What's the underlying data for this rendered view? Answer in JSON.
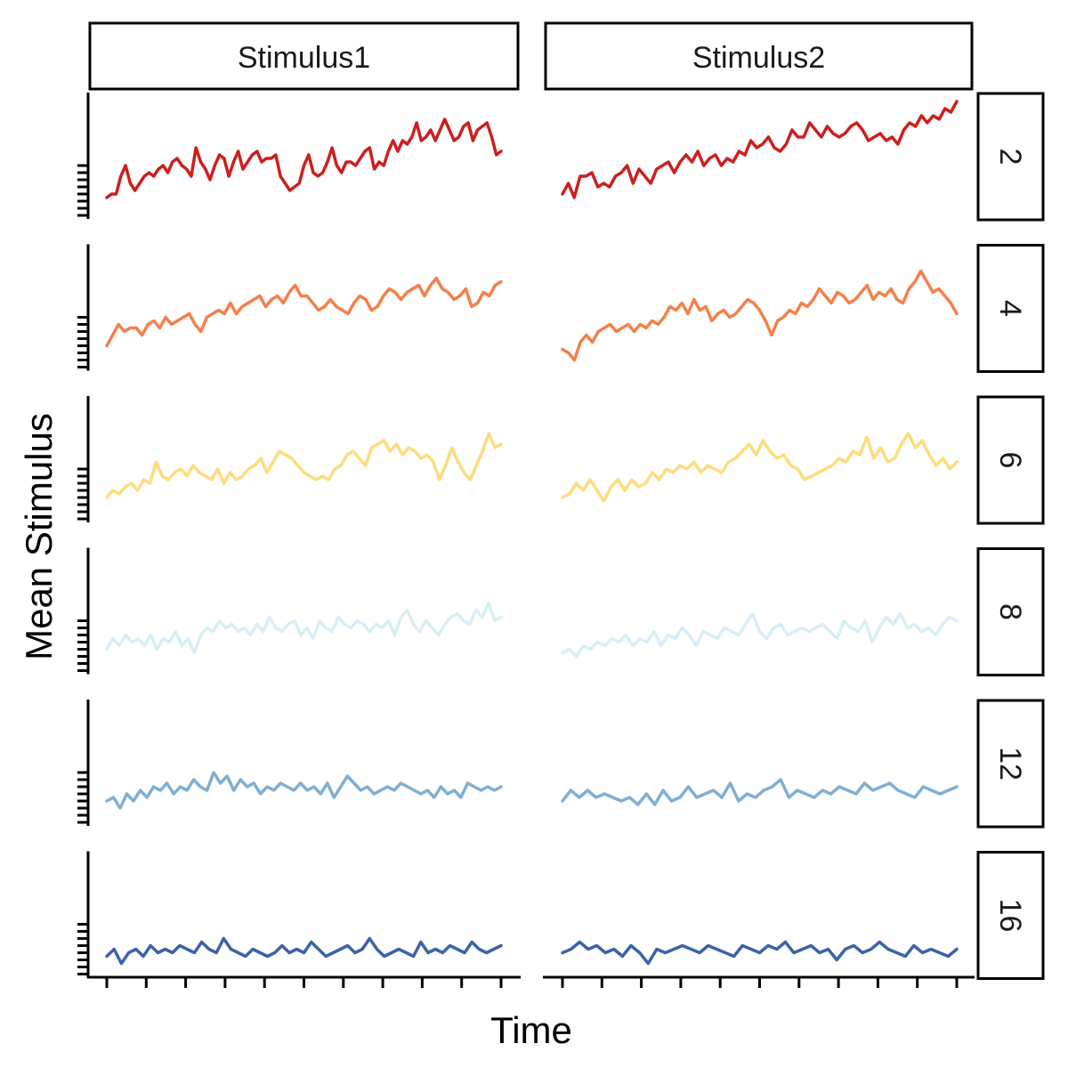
{
  "chart_data": {
    "type": "line",
    "title": "",
    "xlabel": "Time",
    "ylabel": "Mean Stimulus",
    "facet_columns": [
      "Stimulus1",
      "Stimulus2"
    ],
    "facet_rows": [
      "2",
      "4",
      "6",
      "8",
      "12",
      "16"
    ],
    "x_tick_count": 11,
    "grid": false,
    "series": [
      {
        "row": "2",
        "color": "#cc1f1f",
        "Stimulus1": [
          0.25,
          0.3,
          0.3,
          0.55,
          0.7,
          0.45,
          0.35,
          0.45,
          0.55,
          0.6,
          0.55,
          0.65,
          0.7,
          0.6,
          0.75,
          0.8,
          0.7,
          0.65,
          0.55,
          0.95,
          0.75,
          0.65,
          0.5,
          0.7,
          0.85,
          0.8,
          0.55,
          0.75,
          0.9,
          0.65,
          0.75,
          0.85,
          0.9,
          0.75,
          0.8,
          0.8,
          0.85,
          0.55,
          0.45,
          0.35,
          0.4,
          0.45,
          0.7,
          0.85,
          0.6,
          0.55,
          0.6,
          0.75,
          0.95,
          0.7,
          0.6,
          0.75,
          0.75,
          0.7,
          0.8,
          0.9,
          0.95,
          0.65,
          0.75,
          0.7,
          0.9,
          1.05,
          0.9,
          1.05,
          1.0,
          1.1,
          1.3,
          1.05,
          1.1,
          1.2,
          1.05,
          1.2,
          1.35,
          1.2,
          1.05,
          1.1,
          1.25,
          1.3,
          1.05,
          1.2,
          1.25,
          1.3,
          1.1,
          0.85,
          0.9
        ],
        "Stimulus2": [
          0.3,
          0.45,
          0.25,
          0.55,
          0.55,
          0.6,
          0.4,
          0.45,
          0.4,
          0.55,
          0.6,
          0.7,
          0.45,
          0.65,
          0.55,
          0.45,
          0.65,
          0.7,
          0.75,
          0.6,
          0.75,
          0.85,
          0.75,
          0.9,
          0.7,
          0.8,
          0.85,
          0.7,
          0.8,
          0.75,
          0.9,
          0.85,
          1.05,
          0.95,
          1.0,
          1.1,
          0.95,
          0.9,
          1.0,
          1.2,
          1.1,
          1.1,
          1.3,
          1.2,
          1.1,
          1.25,
          1.15,
          1.1,
          1.15,
          1.25,
          1.3,
          1.2,
          1.05,
          1.1,
          1.15,
          1.05,
          1.1,
          1.0,
          1.2,
          1.3,
          1.25,
          1.4,
          1.3,
          1.4,
          1.35,
          1.5,
          1.45,
          1.6
        ]
      },
      {
        "row": "4",
        "color": "#f4804a",
        "Stimulus1": [
          0.3,
          0.45,
          0.6,
          0.5,
          0.55,
          0.55,
          0.45,
          0.6,
          0.65,
          0.55,
          0.7,
          0.6,
          0.65,
          0.7,
          0.75,
          0.6,
          0.5,
          0.7,
          0.75,
          0.8,
          0.75,
          0.9,
          0.75,
          0.85,
          0.9,
          0.95,
          1.0,
          0.85,
          0.95,
          1.0,
          0.9,
          1.05,
          1.15,
          1.0,
          1.0,
          0.9,
          0.8,
          0.85,
          0.95,
          0.85,
          0.8,
          0.75,
          0.9,
          1.0,
          0.95,
          0.8,
          0.85,
          1.0,
          1.1,
          1.05,
          0.95,
          1.05,
          1.1,
          1.15,
          1.0,
          1.15,
          1.25,
          1.1,
          1.05,
          0.95,
          1.0,
          1.1,
          0.85,
          0.9,
          1.05,
          1.0,
          1.15,
          1.2
        ],
        "Stimulus2": [
          0.25,
          0.2,
          0.1,
          0.35,
          0.45,
          0.35,
          0.5,
          0.55,
          0.6,
          0.5,
          0.55,
          0.6,
          0.5,
          0.6,
          0.55,
          0.65,
          0.6,
          0.7,
          0.85,
          0.8,
          0.9,
          0.75,
          0.95,
          0.8,
          0.85,
          0.65,
          0.75,
          0.8,
          0.7,
          0.75,
          0.85,
          0.95,
          0.9,
          0.8,
          0.65,
          0.45,
          0.65,
          0.7,
          0.8,
          0.75,
          0.9,
          0.85,
          0.95,
          1.1,
          1.0,
          0.9,
          1.05,
          1.0,
          0.9,
          0.95,
          1.05,
          1.15,
          0.95,
          1.05,
          1.0,
          1.1,
          0.95,
          0.9,
          1.1,
          1.2,
          1.35,
          1.2,
          1.05,
          1.1,
          1.0,
          0.9,
          0.75
        ]
      },
      {
        "row": "6",
        "color": "#fddc7e",
        "Stimulus1": [
          0.3,
          0.4,
          0.35,
          0.45,
          0.5,
          0.4,
          0.55,
          0.5,
          0.8,
          0.6,
          0.55,
          0.65,
          0.7,
          0.6,
          0.75,
          0.65,
          0.6,
          0.55,
          0.7,
          0.5,
          0.65,
          0.55,
          0.6,
          0.7,
          0.75,
          0.85,
          0.65,
          0.8,
          0.95,
          0.9,
          0.85,
          0.75,
          0.65,
          0.6,
          0.55,
          0.6,
          0.55,
          0.7,
          0.75,
          0.9,
          0.95,
          0.85,
          0.75,
          1.0,
          1.05,
          1.1,
          0.95,
          1.05,
          0.9,
          1.0,
          0.95,
          0.85,
          0.9,
          0.8,
          0.55,
          0.75,
          1.0,
          0.8,
          0.65,
          0.55,
          0.75,
          0.95,
          1.2,
          1.0,
          1.05
        ],
        "Stimulus2": [
          0.3,
          0.35,
          0.5,
          0.4,
          0.55,
          0.4,
          0.25,
          0.45,
          0.55,
          0.4,
          0.55,
          0.45,
          0.5,
          0.65,
          0.55,
          0.7,
          0.65,
          0.75,
          0.7,
          0.8,
          0.65,
          0.75,
          0.7,
          0.65,
          0.8,
          0.85,
          0.95,
          1.05,
          0.9,
          1.1,
          0.95,
          0.85,
          0.9,
          0.75,
          0.7,
          0.55,
          0.6,
          0.65,
          0.7,
          0.75,
          0.85,
          0.8,
          0.95,
          0.9,
          1.15,
          0.85,
          1.0,
          0.8,
          0.85,
          1.05,
          1.2,
          1.0,
          1.1,
          0.9,
          0.75,
          0.85,
          0.7,
          0.8
        ]
      },
      {
        "row": "8",
        "color": "#d8eef6",
        "Stimulus1": [
          0.3,
          0.45,
          0.35,
          0.5,
          0.4,
          0.45,
          0.35,
          0.5,
          0.3,
          0.45,
          0.4,
          0.55,
          0.35,
          0.45,
          0.25,
          0.5,
          0.6,
          0.55,
          0.7,
          0.6,
          0.65,
          0.55,
          0.6,
          0.5,
          0.65,
          0.55,
          0.75,
          0.6,
          0.55,
          0.65,
          0.7,
          0.5,
          0.6,
          0.45,
          0.7,
          0.6,
          0.55,
          0.75,
          0.65,
          0.6,
          0.7,
          0.65,
          0.55,
          0.65,
          0.6,
          0.7,
          0.5,
          0.75,
          0.85,
          0.65,
          0.55,
          0.7,
          0.6,
          0.5,
          0.65,
          0.75,
          0.8,
          0.7,
          0.65,
          0.85,
          0.75,
          0.95,
          0.7,
          0.75
        ],
        "Stimulus2": [
          0.25,
          0.3,
          0.2,
          0.35,
          0.3,
          0.4,
          0.35,
          0.45,
          0.4,
          0.5,
          0.35,
          0.45,
          0.4,
          0.55,
          0.35,
          0.5,
          0.45,
          0.6,
          0.5,
          0.35,
          0.55,
          0.5,
          0.45,
          0.6,
          0.55,
          0.5,
          0.65,
          0.8,
          0.55,
          0.45,
          0.6,
          0.65,
          0.5,
          0.55,
          0.6,
          0.55,
          0.6,
          0.65,
          0.55,
          0.45,
          0.7,
          0.6,
          0.55,
          0.7,
          0.4,
          0.6,
          0.75,
          0.65,
          0.8,
          0.6,
          0.65,
          0.55,
          0.6,
          0.5,
          0.65,
          0.75,
          0.7
        ]
      },
      {
        "row": "12",
        "color": "#7fafd3",
        "Stimulus1": [
          0.3,
          0.35,
          0.2,
          0.4,
          0.3,
          0.45,
          0.35,
          0.5,
          0.45,
          0.55,
          0.4,
          0.5,
          0.45,
          0.6,
          0.5,
          0.45,
          0.7,
          0.55,
          0.65,
          0.45,
          0.6,
          0.5,
          0.55,
          0.4,
          0.5,
          0.45,
          0.55,
          0.5,
          0.45,
          0.55,
          0.45,
          0.5,
          0.4,
          0.55,
          0.35,
          0.5,
          0.65,
          0.55,
          0.45,
          0.5,
          0.4,
          0.45,
          0.5,
          0.45,
          0.55,
          0.5,
          0.45,
          0.4,
          0.45,
          0.35,
          0.5,
          0.4,
          0.45,
          0.35,
          0.55,
          0.5,
          0.45,
          0.5,
          0.45,
          0.5
        ],
        "Stimulus2": [
          0.3,
          0.45,
          0.35,
          0.45,
          0.35,
          0.4,
          0.35,
          0.3,
          0.35,
          0.25,
          0.4,
          0.25,
          0.45,
          0.3,
          0.35,
          0.5,
          0.35,
          0.4,
          0.45,
          0.35,
          0.55,
          0.3,
          0.4,
          0.35,
          0.45,
          0.5,
          0.6,
          0.35,
          0.45,
          0.4,
          0.35,
          0.45,
          0.4,
          0.5,
          0.45,
          0.4,
          0.55,
          0.45,
          0.5,
          0.55,
          0.45,
          0.4,
          0.35,
          0.5,
          0.45,
          0.4,
          0.45,
          0.5
        ]
      },
      {
        "row": "16",
        "color": "#3a63a8",
        "Stimulus1": [
          0.25,
          0.35,
          0.15,
          0.3,
          0.35,
          0.25,
          0.4,
          0.3,
          0.35,
          0.3,
          0.4,
          0.35,
          0.3,
          0.45,
          0.35,
          0.3,
          0.5,
          0.35,
          0.3,
          0.25,
          0.35,
          0.3,
          0.25,
          0.3,
          0.4,
          0.3,
          0.35,
          0.3,
          0.45,
          0.35,
          0.25,
          0.3,
          0.35,
          0.4,
          0.3,
          0.35,
          0.5,
          0.35,
          0.25,
          0.3,
          0.35,
          0.3,
          0.25,
          0.45,
          0.3,
          0.35,
          0.3,
          0.4,
          0.35,
          0.3,
          0.45,
          0.35,
          0.3,
          0.35,
          0.4
        ],
        "Stimulus2": [
          0.3,
          0.35,
          0.45,
          0.35,
          0.4,
          0.3,
          0.35,
          0.25,
          0.4,
          0.3,
          0.15,
          0.35,
          0.3,
          0.35,
          0.4,
          0.35,
          0.3,
          0.4,
          0.35,
          0.3,
          0.25,
          0.4,
          0.35,
          0.3,
          0.4,
          0.35,
          0.45,
          0.3,
          0.35,
          0.4,
          0.3,
          0.35,
          0.2,
          0.35,
          0.4,
          0.3,
          0.35,
          0.45,
          0.35,
          0.3,
          0.25,
          0.4,
          0.3,
          0.35,
          0.3,
          0.25,
          0.35
        ]
      }
    ]
  }
}
